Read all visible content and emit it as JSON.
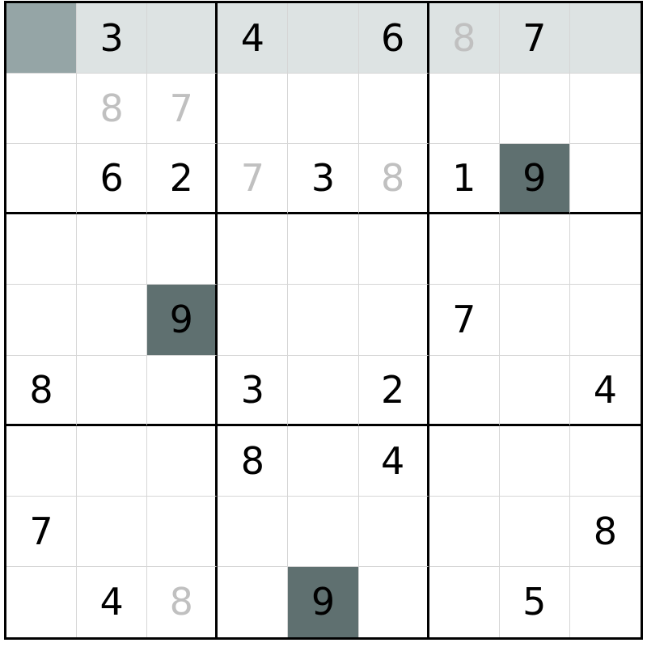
{
  "colors": {
    "highlight_row": "#dde3e3",
    "selected_cell": "#95a5a6",
    "matching_cell": "#5f7070",
    "pencil_digit": "#c0c0c0",
    "given_digit": "#000000"
  },
  "selected": [
    0,
    0
  ],
  "grid": [
    [
      "",
      "3",
      "",
      "4",
      "",
      "6",
      "8",
      "7",
      ""
    ],
    [
      "",
      "8",
      "7",
      "",
      "",
      "",
      "",
      "",
      ""
    ],
    [
      "",
      "6",
      "2",
      "7",
      "3",
      "8",
      "1",
      "9",
      ""
    ],
    [
      "",
      "",
      "",
      "",
      "",
      "",
      "",
      "",
      ""
    ],
    [
      "",
      "",
      "9",
      "",
      "",
      "",
      "7",
      "",
      ""
    ],
    [
      "8",
      "",
      "",
      "3",
      "",
      "2",
      "",
      "",
      "4"
    ],
    [
      "",
      "",
      "",
      "8",
      "",
      "4",
      "",
      "",
      ""
    ],
    [
      "7",
      "",
      "",
      "",
      "",
      "",
      "",
      "",
      "8"
    ],
    [
      "",
      "4",
      "8",
      "",
      "9",
      "",
      "",
      "5",
      ""
    ]
  ],
  "light_digits": [
    [
      0,
      6
    ],
    [
      1,
      1
    ],
    [
      1,
      2
    ],
    [
      2,
      3
    ],
    [
      2,
      5
    ],
    [
      8,
      2
    ]
  ],
  "dark_cells": [
    [
      2,
      7
    ],
    [
      4,
      2
    ],
    [
      8,
      4
    ]
  ]
}
